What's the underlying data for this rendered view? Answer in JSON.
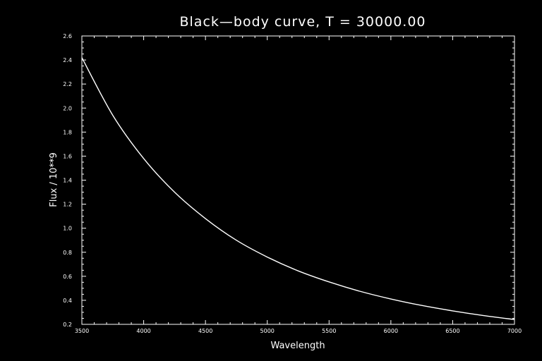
{
  "chart_data": {
    "type": "line",
    "title": "Black—body  curve,  T  =  30000.00",
    "xlabel": "Wavelength",
    "ylabel": "Flux  /  10**9",
    "xlim": [
      3500,
      7000
    ],
    "ylim": [
      0.2,
      2.6
    ],
    "x_ticks": [
      3500,
      4000,
      4500,
      5000,
      5500,
      6000,
      6500,
      7000
    ],
    "x_tick_labels": [
      "3500",
      "4000",
      "4500",
      "5000",
      "5500",
      "6000",
      "6500",
      "7000"
    ],
    "y_ticks": [
      0.2,
      0.4,
      0.6,
      0.8,
      1.0,
      1.2,
      1.4,
      1.6,
      1.8,
      2.0,
      2.2,
      2.4,
      2.6
    ],
    "y_tick_labels": [
      "0.2",
      "0.4",
      "0.6",
      "0.8",
      "1.0",
      "1.2",
      "1.4",
      "1.6",
      "1.8",
      "2.0",
      "2.2",
      "2.4",
      "2.6"
    ],
    "grid": false,
    "series": [
      {
        "x": [
          3500,
          3750,
          4000,
          4250,
          4500,
          4750,
          5000,
          5250,
          5500,
          5750,
          6000,
          6250,
          6500,
          6750,
          7000
        ],
        "values": [
          2.42,
          1.94,
          1.58,
          1.3,
          1.08,
          0.9,
          0.76,
          0.645,
          0.553,
          0.475,
          0.411,
          0.357,
          0.312,
          0.273,
          0.24
        ]
      }
    ],
    "colors": {
      "background": "#000000",
      "foreground": "#ffffff"
    }
  }
}
